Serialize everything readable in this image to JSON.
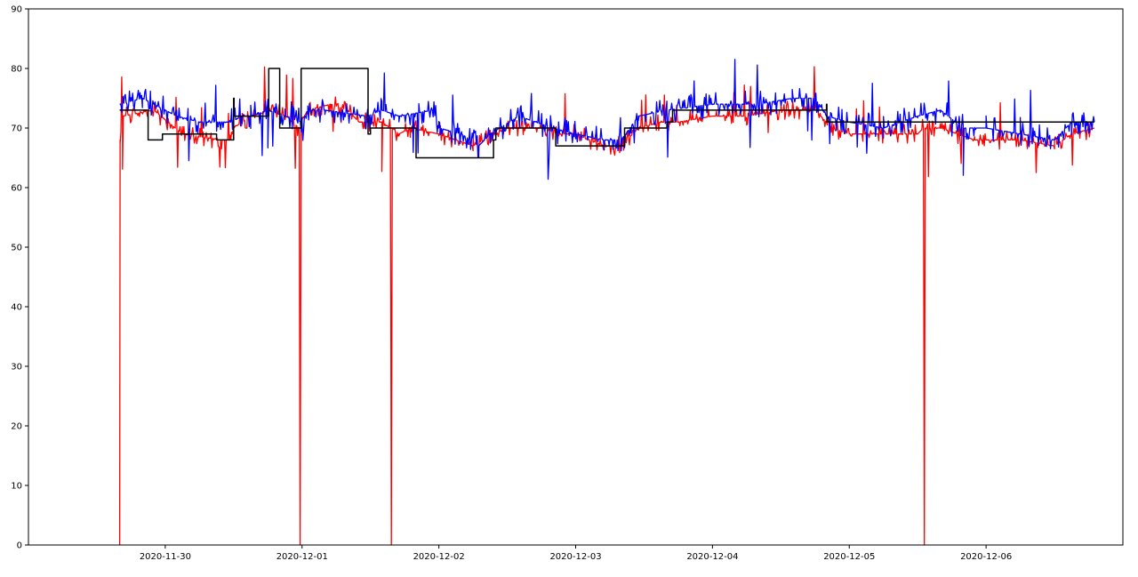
{
  "chart_data": {
    "type": "line",
    "title": "",
    "xlabel": "",
    "ylabel": "",
    "x_domain_dates": [
      "2020-11-29T00:00",
      "2020-12-07T00:00"
    ],
    "ylim": [
      0,
      90
    ],
    "y_ticks": [
      0,
      10,
      20,
      30,
      40,
      50,
      60,
      70,
      80,
      90
    ],
    "x_ticks": [
      "2020-11-30",
      "2020-12-01",
      "2020-12-02",
      "2020-12-03",
      "2020-12-04",
      "2020-12-05",
      "2020-12-06"
    ],
    "grid": false,
    "legend": "none",
    "series": [
      {
        "color": "#ff0000",
        "style": "noisy",
        "points": [
          [
            "2020-11-29T16:00",
            0
          ],
          [
            "2020-11-29T16:05",
            68
          ],
          [
            "2020-11-29T16:30",
            72
          ],
          [
            "2020-11-29T22:00",
            73
          ],
          [
            "2020-11-30T03:00",
            69
          ],
          [
            "2020-11-30T10:00",
            68
          ],
          [
            "2020-11-30T11:30",
            68
          ],
          [
            "2020-11-30T12:00",
            70
          ],
          [
            "2020-11-30T13:30",
            71
          ],
          [
            "2020-11-30T15:00",
            72
          ],
          [
            "2020-11-30T19:00",
            73
          ],
          [
            "2020-11-30T21:00",
            72
          ],
          [
            "2020-11-30T23:30",
            70
          ],
          [
            "2020-11-30T23:40",
            0
          ],
          [
            "2020-11-30T23:50",
            71
          ],
          [
            "2020-12-01T01:00",
            73
          ],
          [
            "2020-12-01T05:00",
            74
          ],
          [
            "2020-12-01T08:00",
            73
          ],
          [
            "2020-12-01T10:00",
            71
          ],
          [
            "2020-12-01T14:00",
            71
          ],
          [
            "2020-12-01T15:30",
            70
          ],
          [
            "2020-12-01T15:40",
            0
          ],
          [
            "2020-12-01T15:50",
            70
          ],
          [
            "2020-12-01T17:00",
            69
          ],
          [
            "2020-12-01T19:00",
            70
          ],
          [
            "2020-12-02T00:00",
            69
          ],
          [
            "2020-12-02T06:00",
            67
          ],
          [
            "2020-12-02T08:00",
            68
          ],
          [
            "2020-12-02T12:00",
            70
          ],
          [
            "2020-12-02T18:00",
            70
          ],
          [
            "2020-12-02T21:00",
            69
          ],
          [
            "2020-12-03T00:00",
            69
          ],
          [
            "2020-12-03T05:00",
            67
          ],
          [
            "2020-12-03T08:00",
            67
          ],
          [
            "2020-12-03T11:00",
            70
          ],
          [
            "2020-12-03T15:00",
            71
          ],
          [
            "2020-12-03T18:00",
            71
          ],
          [
            "2020-12-04T00:00",
            72
          ],
          [
            "2020-12-04T06:00",
            72
          ],
          [
            "2020-12-04T12:00",
            73
          ],
          [
            "2020-12-04T18:00",
            73
          ],
          [
            "2020-12-04T21:00",
            70
          ],
          [
            "2020-12-05T00:00",
            69
          ],
          [
            "2020-12-05T06:00",
            69
          ],
          [
            "2020-12-05T12:00",
            69
          ],
          [
            "2020-12-05T13:00",
            70
          ],
          [
            "2020-12-05T13:10",
            0
          ],
          [
            "2020-12-05T13:20",
            70
          ],
          [
            "2020-12-05T16:00",
            70
          ],
          [
            "2020-12-05T22:00",
            68
          ],
          [
            "2020-12-06T06:00",
            68
          ],
          [
            "2020-12-06T12:00",
            67
          ],
          [
            "2020-12-06T15:00",
            69
          ],
          [
            "2020-12-06T19:00",
            70
          ]
        ]
      },
      {
        "color": "#0000ff",
        "style": "noisy",
        "points": [
          [
            "2020-11-29T16:00",
            74
          ],
          [
            "2020-11-29T20:00",
            75
          ],
          [
            "2020-11-30T02:00",
            72
          ],
          [
            "2020-11-30T06:00",
            71
          ],
          [
            "2020-11-30T10:00",
            71
          ],
          [
            "2020-11-30T11:30",
            71
          ],
          [
            "2020-11-30T13:30",
            72
          ],
          [
            "2020-11-30T15:00",
            72
          ],
          [
            "2020-11-30T18:00",
            73
          ],
          [
            "2020-11-30T21:00",
            72
          ],
          [
            "2020-11-30T23:50",
            71
          ],
          [
            "2020-12-01T01:00",
            73
          ],
          [
            "2020-12-01T04:00",
            73
          ],
          [
            "2020-12-01T11:30",
            72
          ],
          [
            "2020-12-01T14:00",
            73
          ],
          [
            "2020-12-01T17:00",
            72
          ],
          [
            "2020-12-01T23:00",
            73
          ],
          [
            "2020-12-02T00:00",
            70
          ],
          [
            "2020-12-02T04:00",
            69
          ],
          [
            "2020-12-02T07:00",
            67
          ],
          [
            "2020-12-02T09:00",
            69
          ],
          [
            "2020-12-02T14:00",
            72
          ],
          [
            "2020-12-02T20:00",
            70
          ],
          [
            "2020-12-03T00:00",
            69
          ],
          [
            "2020-12-03T05:00",
            68
          ],
          [
            "2020-12-03T08:00",
            68
          ],
          [
            "2020-12-03T11:00",
            72
          ],
          [
            "2020-12-03T16:00",
            73
          ],
          [
            "2020-12-04T00:00",
            74
          ],
          [
            "2020-12-04T08:00",
            74
          ],
          [
            "2020-12-04T14:00",
            75
          ],
          [
            "2020-12-04T18:00",
            75
          ],
          [
            "2020-12-04T20:00",
            72
          ],
          [
            "2020-12-05T00:00",
            71
          ],
          [
            "2020-12-05T06:00",
            70
          ],
          [
            "2020-12-05T12:00",
            72
          ],
          [
            "2020-12-05T16:00",
            73
          ],
          [
            "2020-12-05T20:00",
            70
          ],
          [
            "2020-12-06T00:00",
            70
          ],
          [
            "2020-12-06T06:00",
            69
          ],
          [
            "2020-12-06T12:00",
            68
          ],
          [
            "2020-12-06T15:00",
            71
          ],
          [
            "2020-12-06T19:00",
            71
          ]
        ]
      },
      {
        "color": "#000000",
        "style": "step",
        "points": [
          [
            "2020-11-29T16:00",
            73
          ],
          [
            "2020-11-29T21:00",
            68
          ],
          [
            "2020-11-29T23:30",
            69
          ],
          [
            "2020-11-30T09:00",
            68
          ],
          [
            "2020-11-30T12:00",
            75
          ],
          [
            "2020-11-30T12:05",
            72
          ],
          [
            "2020-11-30T18:00",
            72
          ],
          [
            "2020-11-30T18:10",
            80
          ],
          [
            "2020-11-30T20:00",
            80
          ],
          [
            "2020-11-30T20:05",
            70
          ],
          [
            "2020-11-30T23:50",
            80
          ],
          [
            "2020-12-01T11:30",
            80
          ],
          [
            "2020-12-01T11:35",
            69
          ],
          [
            "2020-12-01T12:00",
            70
          ],
          [
            "2020-12-01T20:00",
            65
          ],
          [
            "2020-12-02T09:30",
            65
          ],
          [
            "2020-12-02T09:35",
            68
          ],
          [
            "2020-12-02T10:00",
            70
          ],
          [
            "2020-12-02T20:30",
            67
          ],
          [
            "2020-12-03T08:30",
            67
          ],
          [
            "2020-12-03T08:35",
            70
          ],
          [
            "2020-12-03T16:00",
            71
          ],
          [
            "2020-12-03T17:00",
            73
          ],
          [
            "2020-12-04T20:00",
            74
          ],
          [
            "2020-12-04T20:05",
            71
          ],
          [
            "2020-12-05T05:00",
            71
          ],
          [
            "2020-12-06T19:00",
            71
          ]
        ]
      }
    ]
  }
}
